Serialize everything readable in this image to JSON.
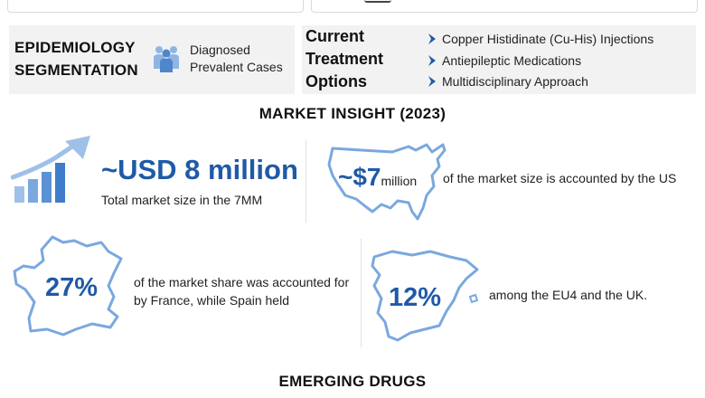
{
  "epidemiology": {
    "title_line1": "EPIDEMIOLOGY",
    "title_line2": "SEGMENTATION",
    "icon": "people-group-icon",
    "label_line1": "Diagnosed",
    "label_line2": "Prevalent Cases"
  },
  "treatment": {
    "title_line1": "Current",
    "title_line2": "Treatment",
    "title_line3": "Options",
    "items": [
      "Copper Histidinate (Cu-His) Injections",
      "Antiepileptic Medications",
      "Multidisciplinary Approach"
    ]
  },
  "market_insight": {
    "title": "MARKET INSIGHT (2023)",
    "total": {
      "value": "~USD 8 million",
      "caption": "Total market size in the 7MM"
    },
    "us": {
      "value": "~$7",
      "unit": "million",
      "caption": "of the market size is accounted by the US"
    },
    "france": {
      "value": "27%",
      "caption_line1": "of the market share was accounted for",
      "caption_line2": "by France, while Spain held"
    },
    "spain": {
      "value": "12%",
      "caption": "among the EU4 and the UK."
    }
  },
  "emerging": {
    "title": "EMERGING DRUGS"
  },
  "colors": {
    "accent_blue": "#1f5aa6",
    "band_gray": "#f2f2f2",
    "icon_light_blue": "#6e9fd8"
  }
}
